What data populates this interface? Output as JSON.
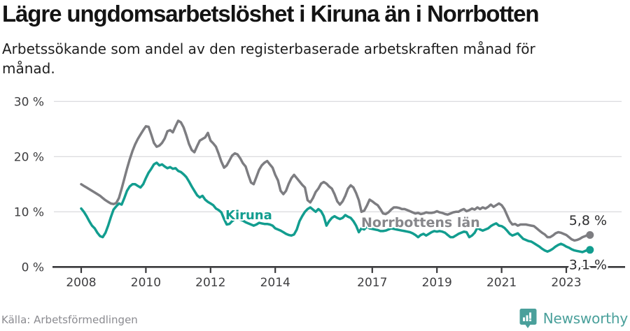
{
  "chart_data": {
    "type": "line",
    "title": "Lägre ungdomsarbetslöshet i Kiruna än i Norrbotten",
    "subtitle": "Arbetssökande som andel av den registerbaserade arbetskraften månad för månad.",
    "unit": "%",
    "frequency": "monthly",
    "x_start": {
      "year": 2008,
      "month": 1
    },
    "x_end": {
      "year": 2023,
      "month": 9
    },
    "ylim": [
      0,
      30
    ],
    "grid": true,
    "y_ticks": [
      {
        "label": "30 %",
        "value": 30
      },
      {
        "label": "20 %",
        "value": 20
      },
      {
        "label": "10 %",
        "value": 10
      },
      {
        "label": "0 %",
        "value": 0
      }
    ],
    "x_ticks": [
      {
        "label": "2008",
        "year": 2008
      },
      {
        "label": "2010",
        "year": 2010
      },
      {
        "label": "2012",
        "year": 2012
      },
      {
        "label": "2014",
        "year": 2014
      },
      {
        "label": "2017",
        "year": 2017
      },
      {
        "label": "2019",
        "year": 2019
      },
      {
        "label": "2021",
        "year": 2021
      },
      {
        "label": "2023",
        "year": 2023
      }
    ],
    "colors": {
      "kiruna": "#129d8f",
      "norrbotten": "#7d7d81",
      "kiruna_label": "#129d8f",
      "norrbotten_label": "#87878b",
      "grid": "#dddde0",
      "axis": "#39393b",
      "tick_text": "#3e3e40",
      "end_label_text": "#2e2e30"
    },
    "series": [
      {
        "name": "Norrbottens län",
        "end_label": "5,8 %",
        "last_value": 5.8,
        "values": [
          15.0,
          14.7,
          14.4,
          14.1,
          13.8,
          13.5,
          13.2,
          12.9,
          12.5,
          12.1,
          11.8,
          11.5,
          11.4,
          11.6,
          12.5,
          14.2,
          16.0,
          17.8,
          19.5,
          21.0,
          22.2,
          23.2,
          24.0,
          24.8,
          25.5,
          25.4,
          24.0,
          22.5,
          21.8,
          22.0,
          22.5,
          23.3,
          24.6,
          24.8,
          24.4,
          25.5,
          26.5,
          26.2,
          25.3,
          23.9,
          22.3,
          21.2,
          20.8,
          21.9,
          22.9,
          23.2,
          23.5,
          24.3,
          22.9,
          22.4,
          21.8,
          20.5,
          19.1,
          18.0,
          18.4,
          19.3,
          20.2,
          20.6,
          20.4,
          19.7,
          18.8,
          18.2,
          16.7,
          15.3,
          15.0,
          16.3,
          17.6,
          18.4,
          18.9,
          19.2,
          18.6,
          18.0,
          16.7,
          15.7,
          13.8,
          13.2,
          13.8,
          15.1,
          16.1,
          16.7,
          16.1,
          15.5,
          14.9,
          14.4,
          12.1,
          11.7,
          12.5,
          13.6,
          14.2,
          15.1,
          15.4,
          15.1,
          14.6,
          14.2,
          13.2,
          11.9,
          11.3,
          11.9,
          12.9,
          14.2,
          14.8,
          14.4,
          13.4,
          12.1,
          10.0,
          10.2,
          11.1,
          12.2,
          11.9,
          11.5,
          11.2,
          10.5,
          9.7,
          9.6,
          9.9,
          10.4,
          10.8,
          10.8,
          10.7,
          10.5,
          10.5,
          10.3,
          10.1,
          9.9,
          9.7,
          9.8,
          9.6,
          9.7,
          9.9,
          9.8,
          9.8,
          9.9,
          10.1,
          9.9,
          9.8,
          9.6,
          9.5,
          9.7,
          9.9,
          10.0,
          10.0,
          10.3,
          10.5,
          10.1,
          10.3,
          10.6,
          10.4,
          10.8,
          10.5,
          10.8,
          10.6,
          10.9,
          11.3,
          10.9,
          11.2,
          11.5,
          11.2,
          10.5,
          9.4,
          8.3,
          7.7,
          7.8,
          7.5,
          7.7,
          7.7,
          7.7,
          7.6,
          7.5,
          7.4,
          7.0,
          6.6,
          6.2,
          5.9,
          5.4,
          5.4,
          5.7,
          6.1,
          6.3,
          6.2,
          6.0,
          5.8,
          5.4,
          5.0,
          4.8,
          4.9,
          5.1,
          5.4,
          5.6,
          5.8
        ]
      },
      {
        "name": "Kiruna",
        "end_label": "3,1 %",
        "last_value": 3.1,
        "values": [
          10.6,
          10.0,
          9.2,
          8.3,
          7.5,
          7.0,
          6.2,
          5.6,
          5.4,
          6.2,
          7.5,
          9.0,
          10.4,
          11.0,
          11.5,
          11.3,
          12.5,
          13.8,
          14.6,
          15.0,
          15.0,
          14.7,
          14.4,
          15.0,
          16.1,
          17.1,
          17.8,
          18.6,
          18.9,
          18.4,
          18.6,
          18.2,
          17.9,
          18.1,
          17.8,
          17.9,
          17.4,
          17.2,
          16.8,
          16.3,
          15.5,
          14.6,
          13.8,
          13.0,
          12.6,
          12.9,
          12.2,
          11.8,
          11.5,
          11.2,
          10.6,
          10.3,
          9.9,
          8.7,
          7.7,
          7.8,
          8.3,
          8.7,
          8.9,
          8.6,
          8.4,
          8.1,
          7.9,
          7.7,
          7.5,
          7.7,
          8.0,
          7.9,
          7.8,
          7.8,
          7.7,
          7.5,
          7.0,
          6.8,
          6.6,
          6.3,
          6.0,
          5.8,
          5.7,
          5.9,
          6.8,
          8.3,
          9.2,
          10.0,
          10.5,
          10.8,
          10.4,
          10.0,
          10.5,
          10.1,
          9.2,
          7.5,
          8.3,
          8.9,
          9.2,
          8.9,
          8.7,
          8.9,
          9.4,
          9.1,
          8.9,
          8.3,
          7.5,
          6.3,
          7.0,
          6.8,
          7.3,
          7.0,
          6.9,
          6.8,
          6.7,
          6.5,
          6.5,
          6.6,
          6.8,
          7.0,
          6.9,
          6.8,
          6.7,
          6.6,
          6.5,
          6.4,
          6.3,
          6.1,
          5.8,
          5.4,
          5.8,
          6.0,
          5.7,
          6.0,
          6.3,
          6.5,
          6.4,
          6.5,
          6.4,
          6.2,
          5.8,
          5.4,
          5.4,
          5.7,
          6.0,
          6.2,
          6.4,
          6.3,
          5.4,
          5.7,
          6.2,
          7.1,
          6.8,
          6.6,
          6.8,
          7.0,
          7.4,
          7.7,
          7.9,
          7.5,
          7.4,
          7.1,
          6.6,
          6.0,
          5.7,
          5.9,
          6.1,
          5.6,
          5.1,
          4.9,
          4.7,
          4.6,
          4.3,
          4.0,
          3.7,
          3.3,
          3.0,
          2.8,
          3.0,
          3.3,
          3.7,
          4.0,
          4.2,
          4.0,
          3.7,
          3.5,
          3.2,
          3.0,
          2.9,
          2.8,
          2.7,
          2.9,
          3.1
        ]
      }
    ],
    "series_labels": [
      {
        "text": "Kiruna",
        "x": 322,
        "y": 314
      },
      {
        "text": "Norrbottens län",
        "x": 516,
        "y": 325
      }
    ]
  },
  "footer": {
    "source": "Källa: Arbetsförmedlingen",
    "brand": "Newsworthy"
  }
}
